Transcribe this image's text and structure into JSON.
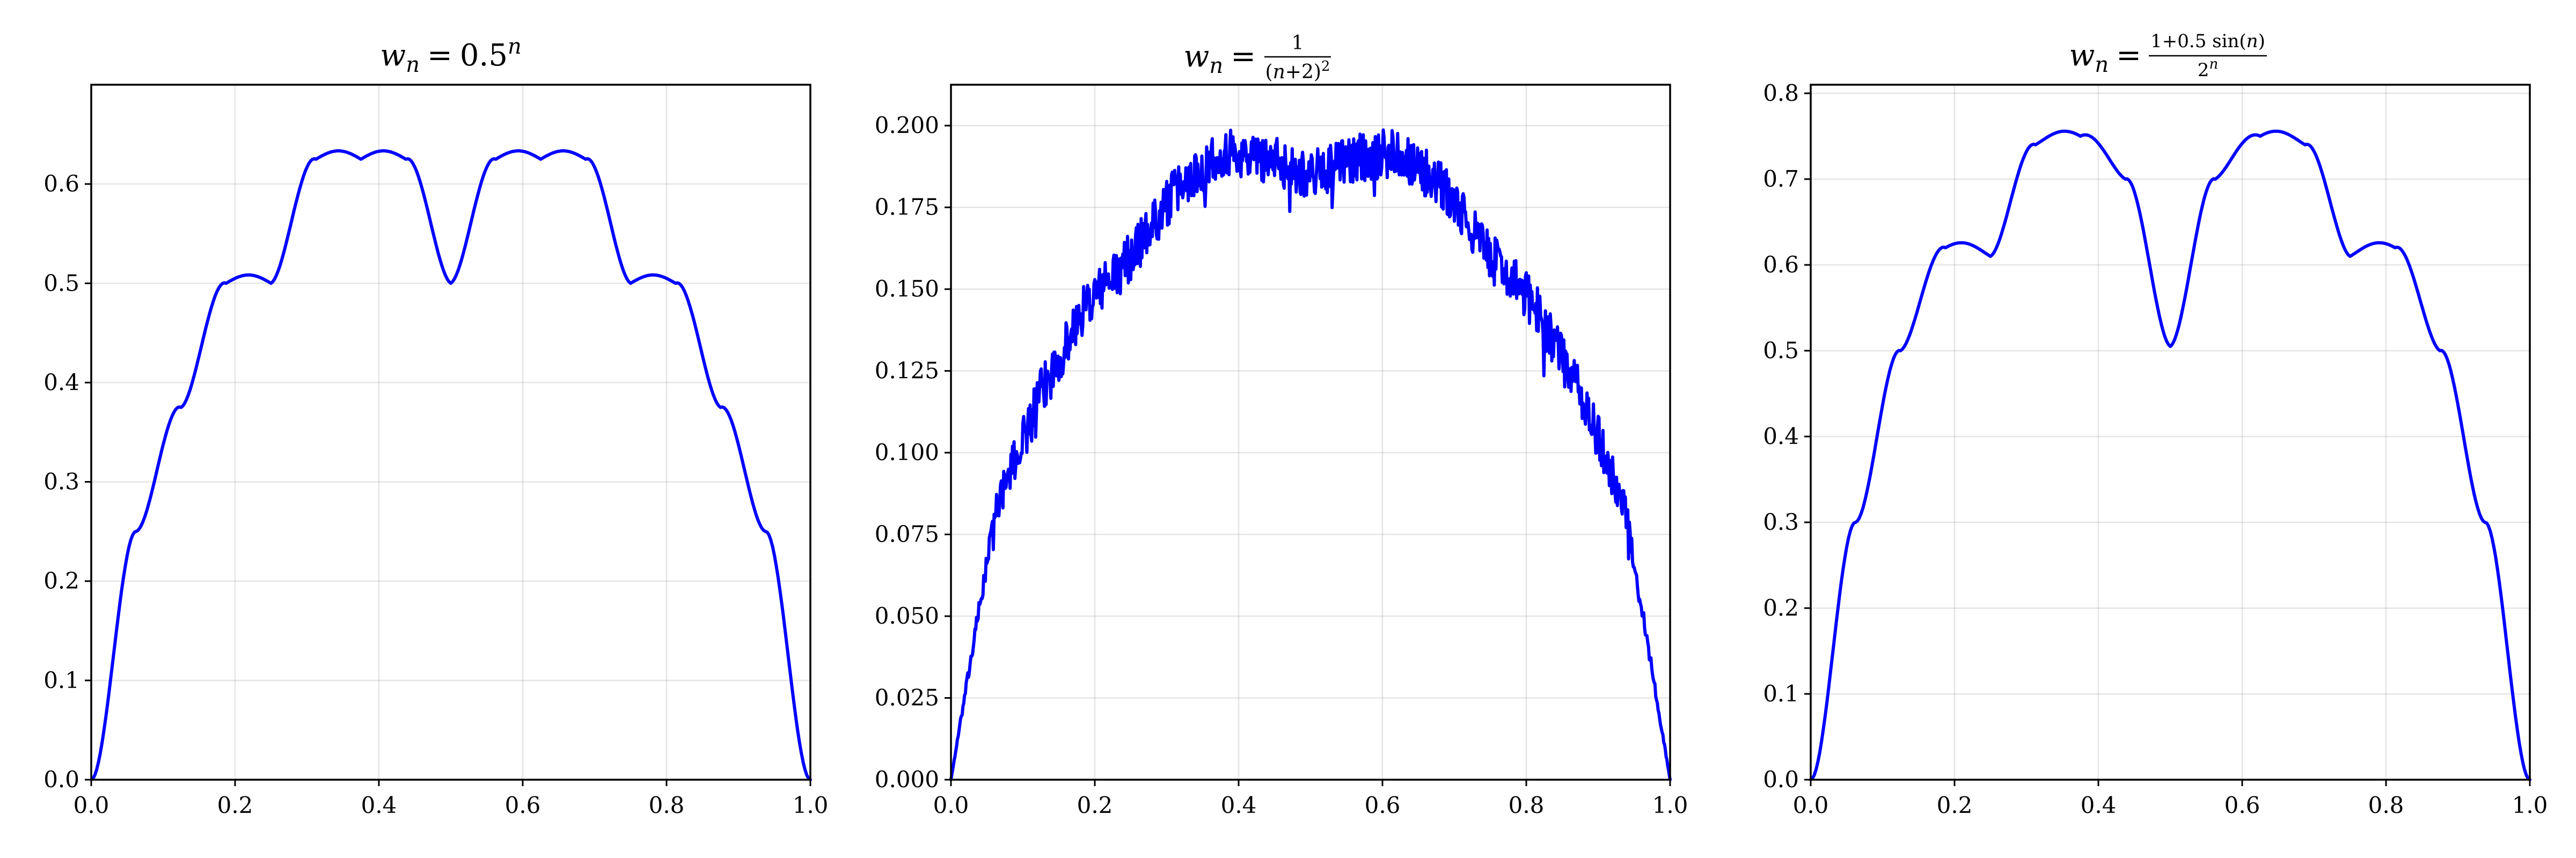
{
  "colors": {
    "line": "#0000ff",
    "axis": "#000000",
    "grid": "#e6e6e6",
    "background": "#ffffff"
  },
  "chart_data": [
    {
      "type": "line",
      "title": {
        "lhs": "w",
        "sub": "n",
        "rel": "=",
        "base": "0.5",
        "exp": "n"
      },
      "xlim": [
        0,
        1
      ],
      "ylim": [
        0,
        0.7
      ],
      "xticks": [
        "0.0",
        "0.2",
        "0.4",
        "0.6",
        "0.8",
        "1.0"
      ],
      "yticks": [
        "0.0",
        "0.1",
        "0.2",
        "0.3",
        "0.4",
        "0.5",
        "0.6"
      ],
      "grid": true,
      "legend": "none",
      "series": [
        {
          "x": [
            0,
            0.0625,
            0.125,
            0.1875,
            0.25,
            0.3125,
            0.375,
            0.4375,
            0.5,
            0.5625,
            0.625,
            0.6875,
            0.75,
            0.8125,
            0.875,
            0.9375,
            1
          ],
          "y": [
            0,
            0.25,
            0.375,
            0.5,
            0.5,
            0.625,
            0.625,
            0.625,
            0.5,
            0.625,
            0.625,
            0.625,
            0.5,
            0.5,
            0.375,
            0.25,
            0
          ]
        }
      ]
    },
    {
      "type": "line",
      "title": {
        "lhs": "w",
        "sub": "n",
        "rel": "=",
        "num": "1",
        "den_open": "(",
        "den_var": "n",
        "den_rest": "+2)",
        "den_exp": "2"
      },
      "xlim": [
        0,
        1
      ],
      "ylim": [
        0,
        0.2125
      ],
      "xticks": [
        "0.0",
        "0.2",
        "0.4",
        "0.6",
        "0.8",
        "1.0"
      ],
      "yticks": [
        "0.000",
        "0.025",
        "0.050",
        "0.075",
        "0.100",
        "0.125",
        "0.150",
        "0.175",
        "0.200"
      ],
      "grid": true,
      "legend": "none",
      "series": [
        {
          "x": [
            0,
            0.0625,
            0.125,
            0.1875,
            0.25,
            0.3125,
            0.375,
            0.4375,
            0.5,
            0.5625,
            0.625,
            0.6875,
            0.75,
            0.8125,
            0.875,
            0.9375,
            1
          ],
          "y": [
            0,
            0.083,
            0.118,
            0.145,
            0.16,
            0.18,
            0.192,
            0.19,
            0.185,
            0.19,
            0.192,
            0.18,
            0.16,
            0.145,
            0.118,
            0.083,
            0
          ]
        }
      ]
    },
    {
      "type": "line",
      "title": {
        "lhs": "w",
        "sub": "n",
        "rel": "=",
        "num_a": "1+0.5 sin(",
        "num_var": "n",
        "num_b": ")",
        "den_base": "2",
        "den_exp": "n"
      },
      "xlim": [
        0,
        1
      ],
      "ylim": [
        0,
        0.81
      ],
      "xticks": [
        "0.0",
        "0.2",
        "0.4",
        "0.6",
        "0.8",
        "1.0"
      ],
      "yticks": [
        "0.0",
        "0.1",
        "0.2",
        "0.3",
        "0.4",
        "0.5",
        "0.6",
        "0.7",
        "0.8"
      ],
      "grid": true,
      "legend": "none",
      "series": [
        {
          "x": [
            0,
            0.0625,
            0.125,
            0.1875,
            0.25,
            0.3125,
            0.375,
            0.4375,
            0.5,
            0.5625,
            0.625,
            0.6875,
            0.75,
            0.8125,
            0.875,
            0.9375,
            1
          ],
          "y": [
            0,
            0.3,
            0.5,
            0.62,
            0.61,
            0.74,
            0.75,
            0.7,
            0.505,
            0.7,
            0.75,
            0.74,
            0.61,
            0.62,
            0.5,
            0.3,
            0
          ]
        }
      ]
    }
  ]
}
